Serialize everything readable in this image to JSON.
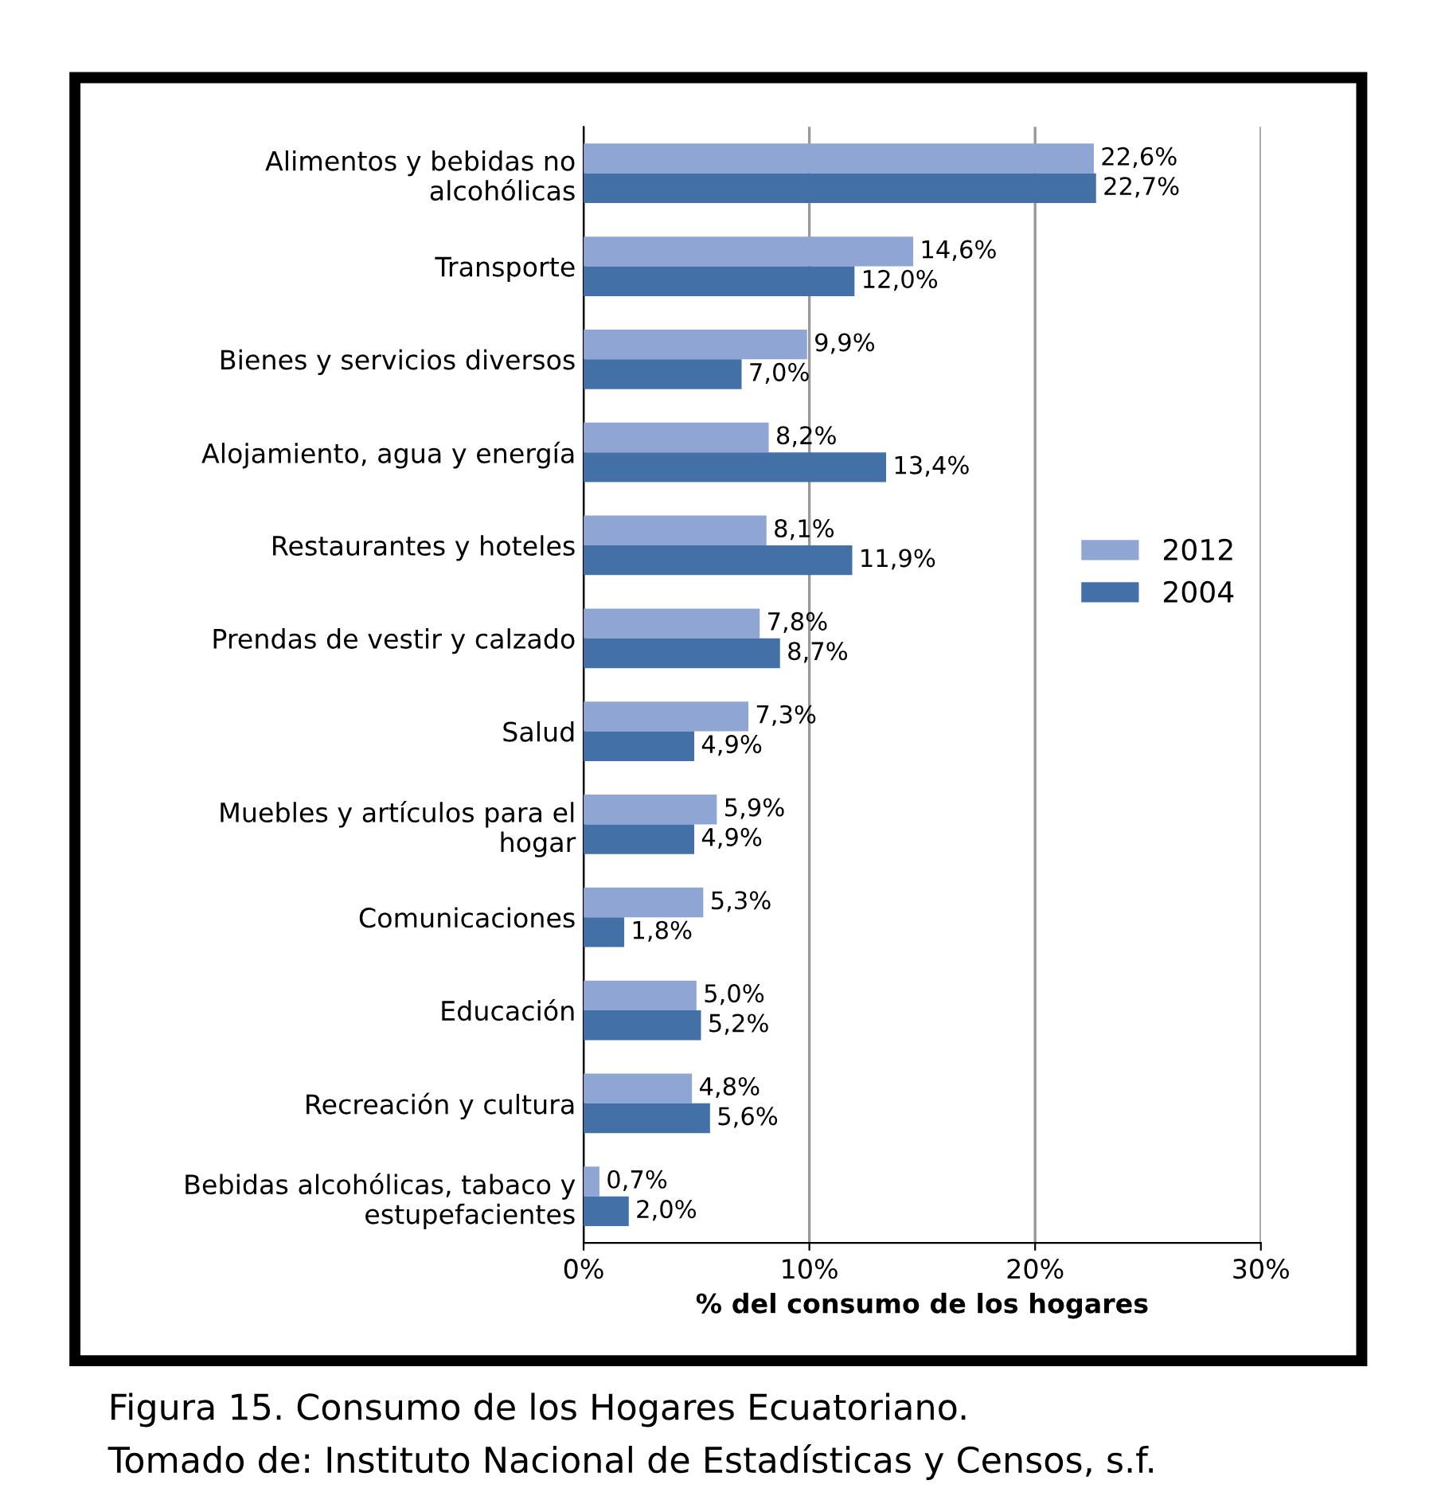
{
  "chart_data": {
    "type": "bar",
    "orientation": "horizontal",
    "categories": [
      "Alimentos y bebidas no\nalcohólicas",
      "Transporte",
      "Bienes y servicios diversos",
      "Alojamiento, agua y energía",
      "Restaurantes y hoteles",
      "Prendas de vestir y calzado",
      "Salud",
      "Muebles y artículos para el\nhogar",
      "Comunicaciones",
      "Educación",
      "Recreación y cultura",
      "Bebidas alcohólicas, tabaco y\nestupefacientes"
    ],
    "series": [
      {
        "name": "2012",
        "color": "#8fa6d4",
        "values": [
          22.6,
          14.6,
          9.9,
          8.2,
          8.1,
          7.8,
          7.3,
          5.9,
          5.3,
          5.0,
          4.8,
          0.7
        ],
        "value_labels": [
          "22,6%",
          "14,6%",
          "9,9%",
          "8,2%",
          "8,1%",
          "7,8%",
          "7,3%",
          "5,9%",
          "5,3%",
          "5,0%",
          "4,8%",
          "0,7%"
        ]
      },
      {
        "name": "2004",
        "color": "#4470a8",
        "values": [
          22.7,
          12.0,
          7.0,
          13.4,
          11.9,
          8.7,
          4.9,
          4.9,
          1.8,
          5.2,
          5.6,
          2.0
        ],
        "value_labels": [
          "22,7%",
          "12,0%",
          "7,0%",
          "13,4%",
          "11,9%",
          "8,7%",
          "4,9%",
          "4,9%",
          "1,8%",
          "5,2%",
          "5,6%",
          "2,0%"
        ]
      }
    ],
    "xlim": [
      0,
      30
    ],
    "xticks": [
      {
        "value": 0,
        "label": "0%"
      },
      {
        "value": 10,
        "label": "10%"
      },
      {
        "value": 20,
        "label": "20%"
      },
      {
        "value": 30,
        "label": "30%"
      }
    ],
    "xlabel": "% del consumo de los hogares",
    "grid": "x",
    "legend": "right",
    "annotations": [
      "Figura 15. Consumo de los Hogares Ecuatoriano.",
      "Tomado de: Instituto Nacional de Estadísticas y Censos, s.f."
    ]
  }
}
